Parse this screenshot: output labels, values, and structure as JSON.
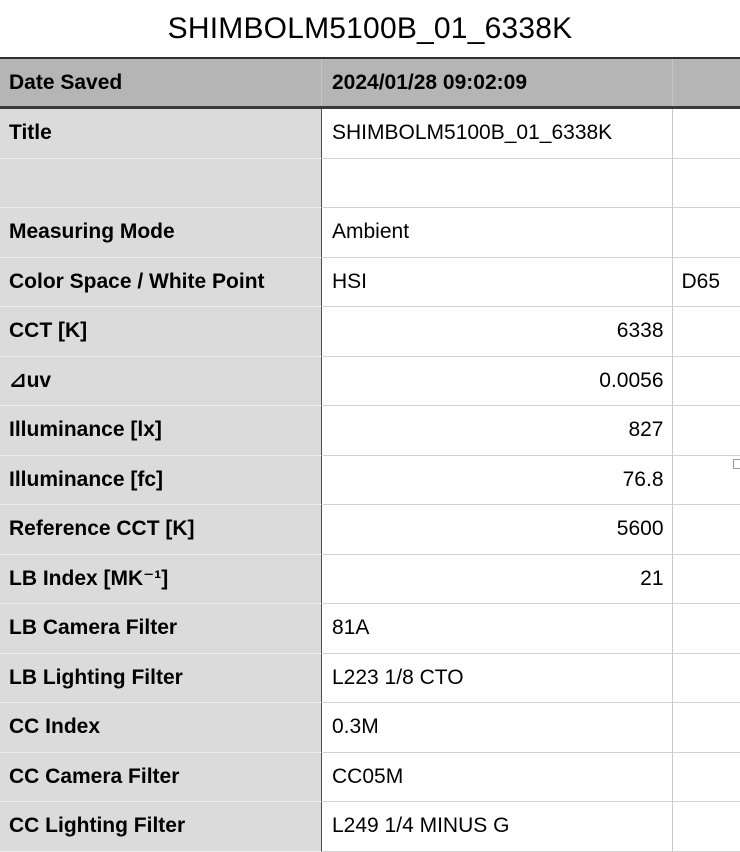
{
  "document_title": "SHIMBOLM5100B_01_6338K",
  "colors": {
    "header_row_bg": "#b5b5b5",
    "label_column_bg": "#dbdbdb",
    "header_bottom_border": "#3a3a3a",
    "table_top_border": "#2f2f2f",
    "label_value_divider": "#505050",
    "grid_line_light": "#d2d2d2",
    "text": "#000000"
  },
  "table": {
    "header": {
      "label": "Date Saved",
      "value": "2024/01/28 09:02:09",
      "extra": ""
    },
    "rows": [
      {
        "label": "Title",
        "value": "SHIMBOLM5100B_01_6338K",
        "extra": "",
        "align": "left"
      },
      {
        "label": "",
        "value": "",
        "extra": "",
        "align": "left"
      },
      {
        "label": "Measuring Mode",
        "value": "Ambient",
        "extra": "",
        "align": "left"
      },
      {
        "label": "Color Space / White Point",
        "value": "HSI",
        "extra": "D65",
        "align": "left"
      },
      {
        "label": "CCT [K]",
        "value": "6338",
        "extra": "",
        "align": "right"
      },
      {
        "label": "⊿uv",
        "value": "0.0056",
        "extra": "",
        "align": "right"
      },
      {
        "label": "Illuminance [lx]",
        "value": "827",
        "extra": "",
        "align": "right"
      },
      {
        "label": "Illuminance [fc]",
        "value": "76.8",
        "extra": "",
        "align": "right"
      },
      {
        "label": "Reference CCT [K]",
        "value": "5600",
        "extra": "",
        "align": "right"
      },
      {
        "label": "LB Index [MK⁻¹]",
        "value": "21",
        "extra": "",
        "align": "right"
      },
      {
        "label": "LB Camera Filter",
        "value": "81A",
        "extra": "",
        "align": "left"
      },
      {
        "label": "LB Lighting Filter",
        "value": "L223 1/8 CTO",
        "extra": "",
        "align": "left"
      },
      {
        "label": "CC Index",
        "value": "0.3M",
        "extra": "",
        "align": "left"
      },
      {
        "label": "CC Camera Filter",
        "value": "CC05M",
        "extra": "",
        "align": "left"
      },
      {
        "label": "CC Lighting Filter",
        "value": "L249 1/4 MINUS G",
        "extra": "",
        "align": "left"
      }
    ]
  }
}
